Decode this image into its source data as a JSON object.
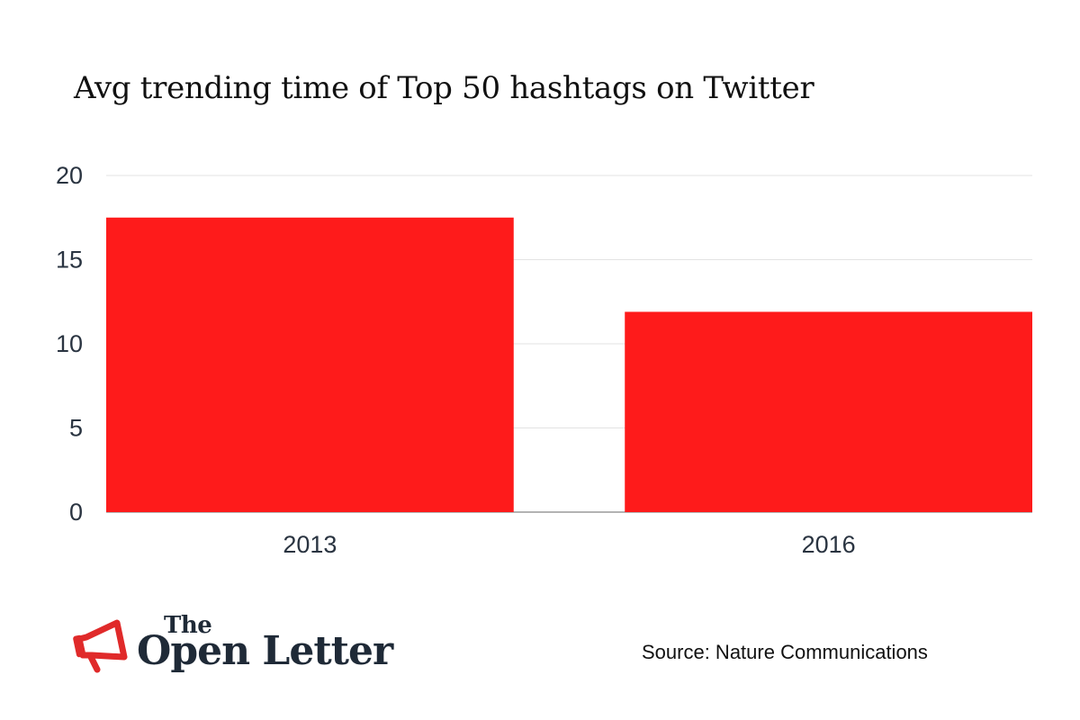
{
  "chart_data": {
    "type": "bar",
    "title": "Avg trending time of Top 50 hashtags on Twitter",
    "categories": [
      "2013",
      "2016"
    ],
    "values": [
      17.5,
      11.9
    ],
    "ylim": [
      0,
      20
    ],
    "yticks": [
      0,
      5,
      10,
      15,
      20
    ],
    "xlabel": "",
    "ylabel": "",
    "grid": true,
    "bar_color": "#fe1b1b",
    "grid_color": "#e3e3e3"
  },
  "footer": {
    "logo_small": "The",
    "logo_main": "Open Letter",
    "source": "Source: Nature Communications"
  },
  "icons": {
    "logo_icon": "megaphone-icon"
  },
  "colors": {
    "logo_accent": "#e02a2a",
    "text_dark": "#1f2a37"
  }
}
